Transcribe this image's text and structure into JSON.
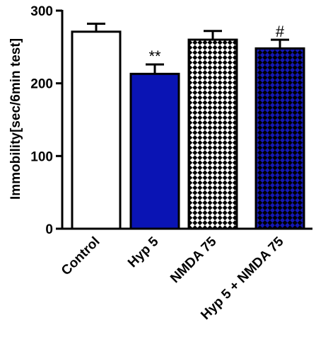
{
  "chart_data": {
    "type": "bar",
    "title": "",
    "xlabel": "",
    "ylabel": "Immobility[sec/6min test]",
    "ylim": [
      0,
      300
    ],
    "yticks": [
      0,
      100,
      200,
      300
    ],
    "categories": [
      "Control",
      "Hyp 5",
      "NMDA 75",
      "Hyp 5 + NMDA 75"
    ],
    "values": [
      271,
      213,
      260,
      248
    ],
    "errors": [
      11,
      13,
      12,
      12
    ],
    "annotations": [
      "",
      "**",
      "",
      "#"
    ],
    "fills": [
      "plain",
      "solid",
      "checker",
      "checker"
    ],
    "colors": {
      "control": "#ffffff",
      "hyp": "#0a14b4",
      "nmda_bg": "#ffffff",
      "nmda_check": "#000000",
      "combo_bg": "#1418b4",
      "combo_check": "#000000",
      "axis": "#000000"
    },
    "grid": false,
    "legend": "none"
  }
}
